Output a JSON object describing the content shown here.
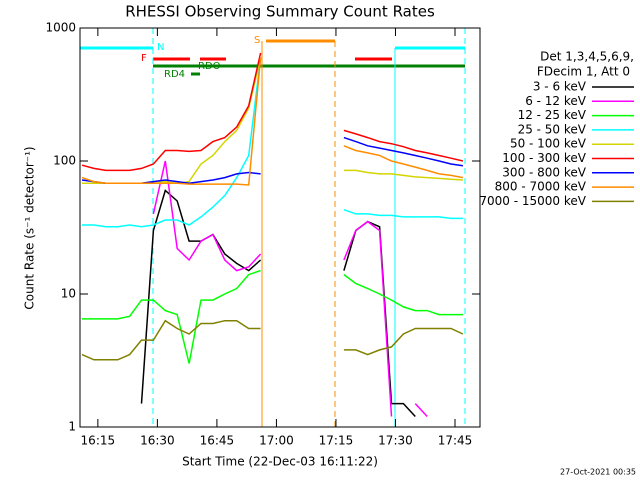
{
  "chart_data": {
    "type": "line",
    "title": "RHESSI Observing Summary Count Rates",
    "x_label": "Start Time (22-Dec-03 16:11:22)",
    "y_label": "Count Rate (s⁻¹ detector⁻¹)",
    "legend_title": [
      "Det 1,3,4,5,6,9,",
      "FDecim 1, Att 0"
    ],
    "timestamp": "27-Oct-2021 00:35",
    "annotations": [
      "N",
      "F",
      "RDO",
      "RD4",
      "S"
    ],
    "log_y": true,
    "xlim": [
      10.5,
      111.3
    ],
    "xticks": [
      {
        "value": 15,
        "label": "16:15"
      },
      {
        "value": 30,
        "label": "16:30"
      },
      {
        "value": 45,
        "label": "16:45"
      },
      {
        "value": 60,
        "label": "17:00"
      },
      {
        "value": 75,
        "label": "17:15"
      },
      {
        "value": 90,
        "label": "17:30"
      },
      {
        "value": 105,
        "label": "17:45"
      }
    ],
    "ylim": [
      1,
      1000
    ],
    "yticks": [
      1,
      10,
      100,
      1000
    ],
    "x": [
      11,
      14,
      17,
      20,
      23,
      26,
      29,
      32,
      35,
      38,
      41,
      44,
      47,
      50,
      53,
      56,
      66,
      77,
      80,
      83,
      86,
      89,
      92,
      95,
      98,
      101,
      104,
      107
    ],
    "series": [
      {
        "name": "3 - 6 keV",
        "color": "#000000",
        "values": [
          null,
          null,
          null,
          null,
          null,
          1.5,
          30,
          60,
          50,
          25,
          25,
          28,
          20,
          17,
          15,
          18,
          null,
          15,
          30,
          35,
          32,
          1.5,
          1.5,
          1.2,
          null,
          null,
          null,
          null
        ]
      },
      {
        "name": "6 - 12 keV",
        "color": "#ff00ff",
        "values": [
          null,
          null,
          null,
          null,
          null,
          null,
          40,
          100,
          22,
          18,
          25,
          28,
          18,
          15,
          16,
          20,
          null,
          18,
          30,
          35,
          30,
          1.2,
          null,
          1.5,
          1.2,
          null,
          null,
          null
        ]
      },
      {
        "name": "12 - 25 keV",
        "color": "#00ff00",
        "values": [
          6.5,
          6.5,
          6.5,
          6.5,
          6.8,
          9,
          9,
          7.5,
          7,
          3,
          9,
          9,
          10,
          11,
          14,
          15,
          null,
          14,
          12,
          11,
          10,
          9,
          8,
          7.5,
          7.5,
          7,
          7,
          7
        ]
      },
      {
        "name": "25 - 50 keV",
        "color": "#00ffff",
        "values": [
          33,
          33,
          32,
          32,
          33,
          32,
          33,
          36,
          36,
          33,
          38,
          45,
          55,
          75,
          110,
          600,
          null,
          43,
          40,
          40,
          39,
          39,
          38,
          38,
          38,
          38,
          37,
          37
        ]
      },
      {
        "name": "50 - 100 keV",
        "color": "#d4d400",
        "values": [
          68,
          68,
          68,
          68,
          68,
          68,
          70,
          70,
          68,
          70,
          95,
          110,
          140,
          170,
          250,
          600,
          null,
          85,
          85,
          82,
          80,
          80,
          78,
          76,
          75,
          74,
          73,
          72
        ]
      },
      {
        "name": "100 - 300 keV",
        "color": "#ff0000",
        "values": [
          93,
          88,
          85,
          85,
          85,
          88,
          95,
          120,
          120,
          118,
          120,
          140,
          150,
          180,
          260,
          650,
          null,
          170,
          160,
          150,
          140,
          135,
          128,
          120,
          115,
          110,
          105,
          100
        ]
      },
      {
        "name": "300 - 800 keV",
        "color": "#0000ff",
        "values": [
          72,
          70,
          68,
          68,
          68,
          68,
          70,
          72,
          70,
          68,
          70,
          72,
          75,
          80,
          82,
          80,
          null,
          150,
          140,
          130,
          125,
          120,
          115,
          110,
          105,
          100,
          95,
          92
        ]
      },
      {
        "name": "800 - 7000 keV",
        "color": "#ff8c00",
        "values": [
          75,
          70,
          68,
          68,
          68,
          68,
          68,
          68,
          68,
          67,
          67,
          67,
          67,
          67,
          66,
          600,
          null,
          130,
          120,
          115,
          110,
          100,
          95,
          90,
          85,
          80,
          78,
          75
        ]
      },
      {
        "name": "7000 - 15000 keV",
        "color": "#808000",
        "values": [
          3.5,
          3.2,
          3.2,
          3.2,
          3.5,
          4.5,
          4.5,
          6.3,
          5.5,
          5,
          6,
          6,
          6.3,
          6.3,
          5.5,
          5.5,
          null,
          3.8,
          3.8,
          3.5,
          3.8,
          4,
          5,
          5.5,
          5.5,
          5.5,
          5.5,
          5
        ]
      }
    ]
  }
}
